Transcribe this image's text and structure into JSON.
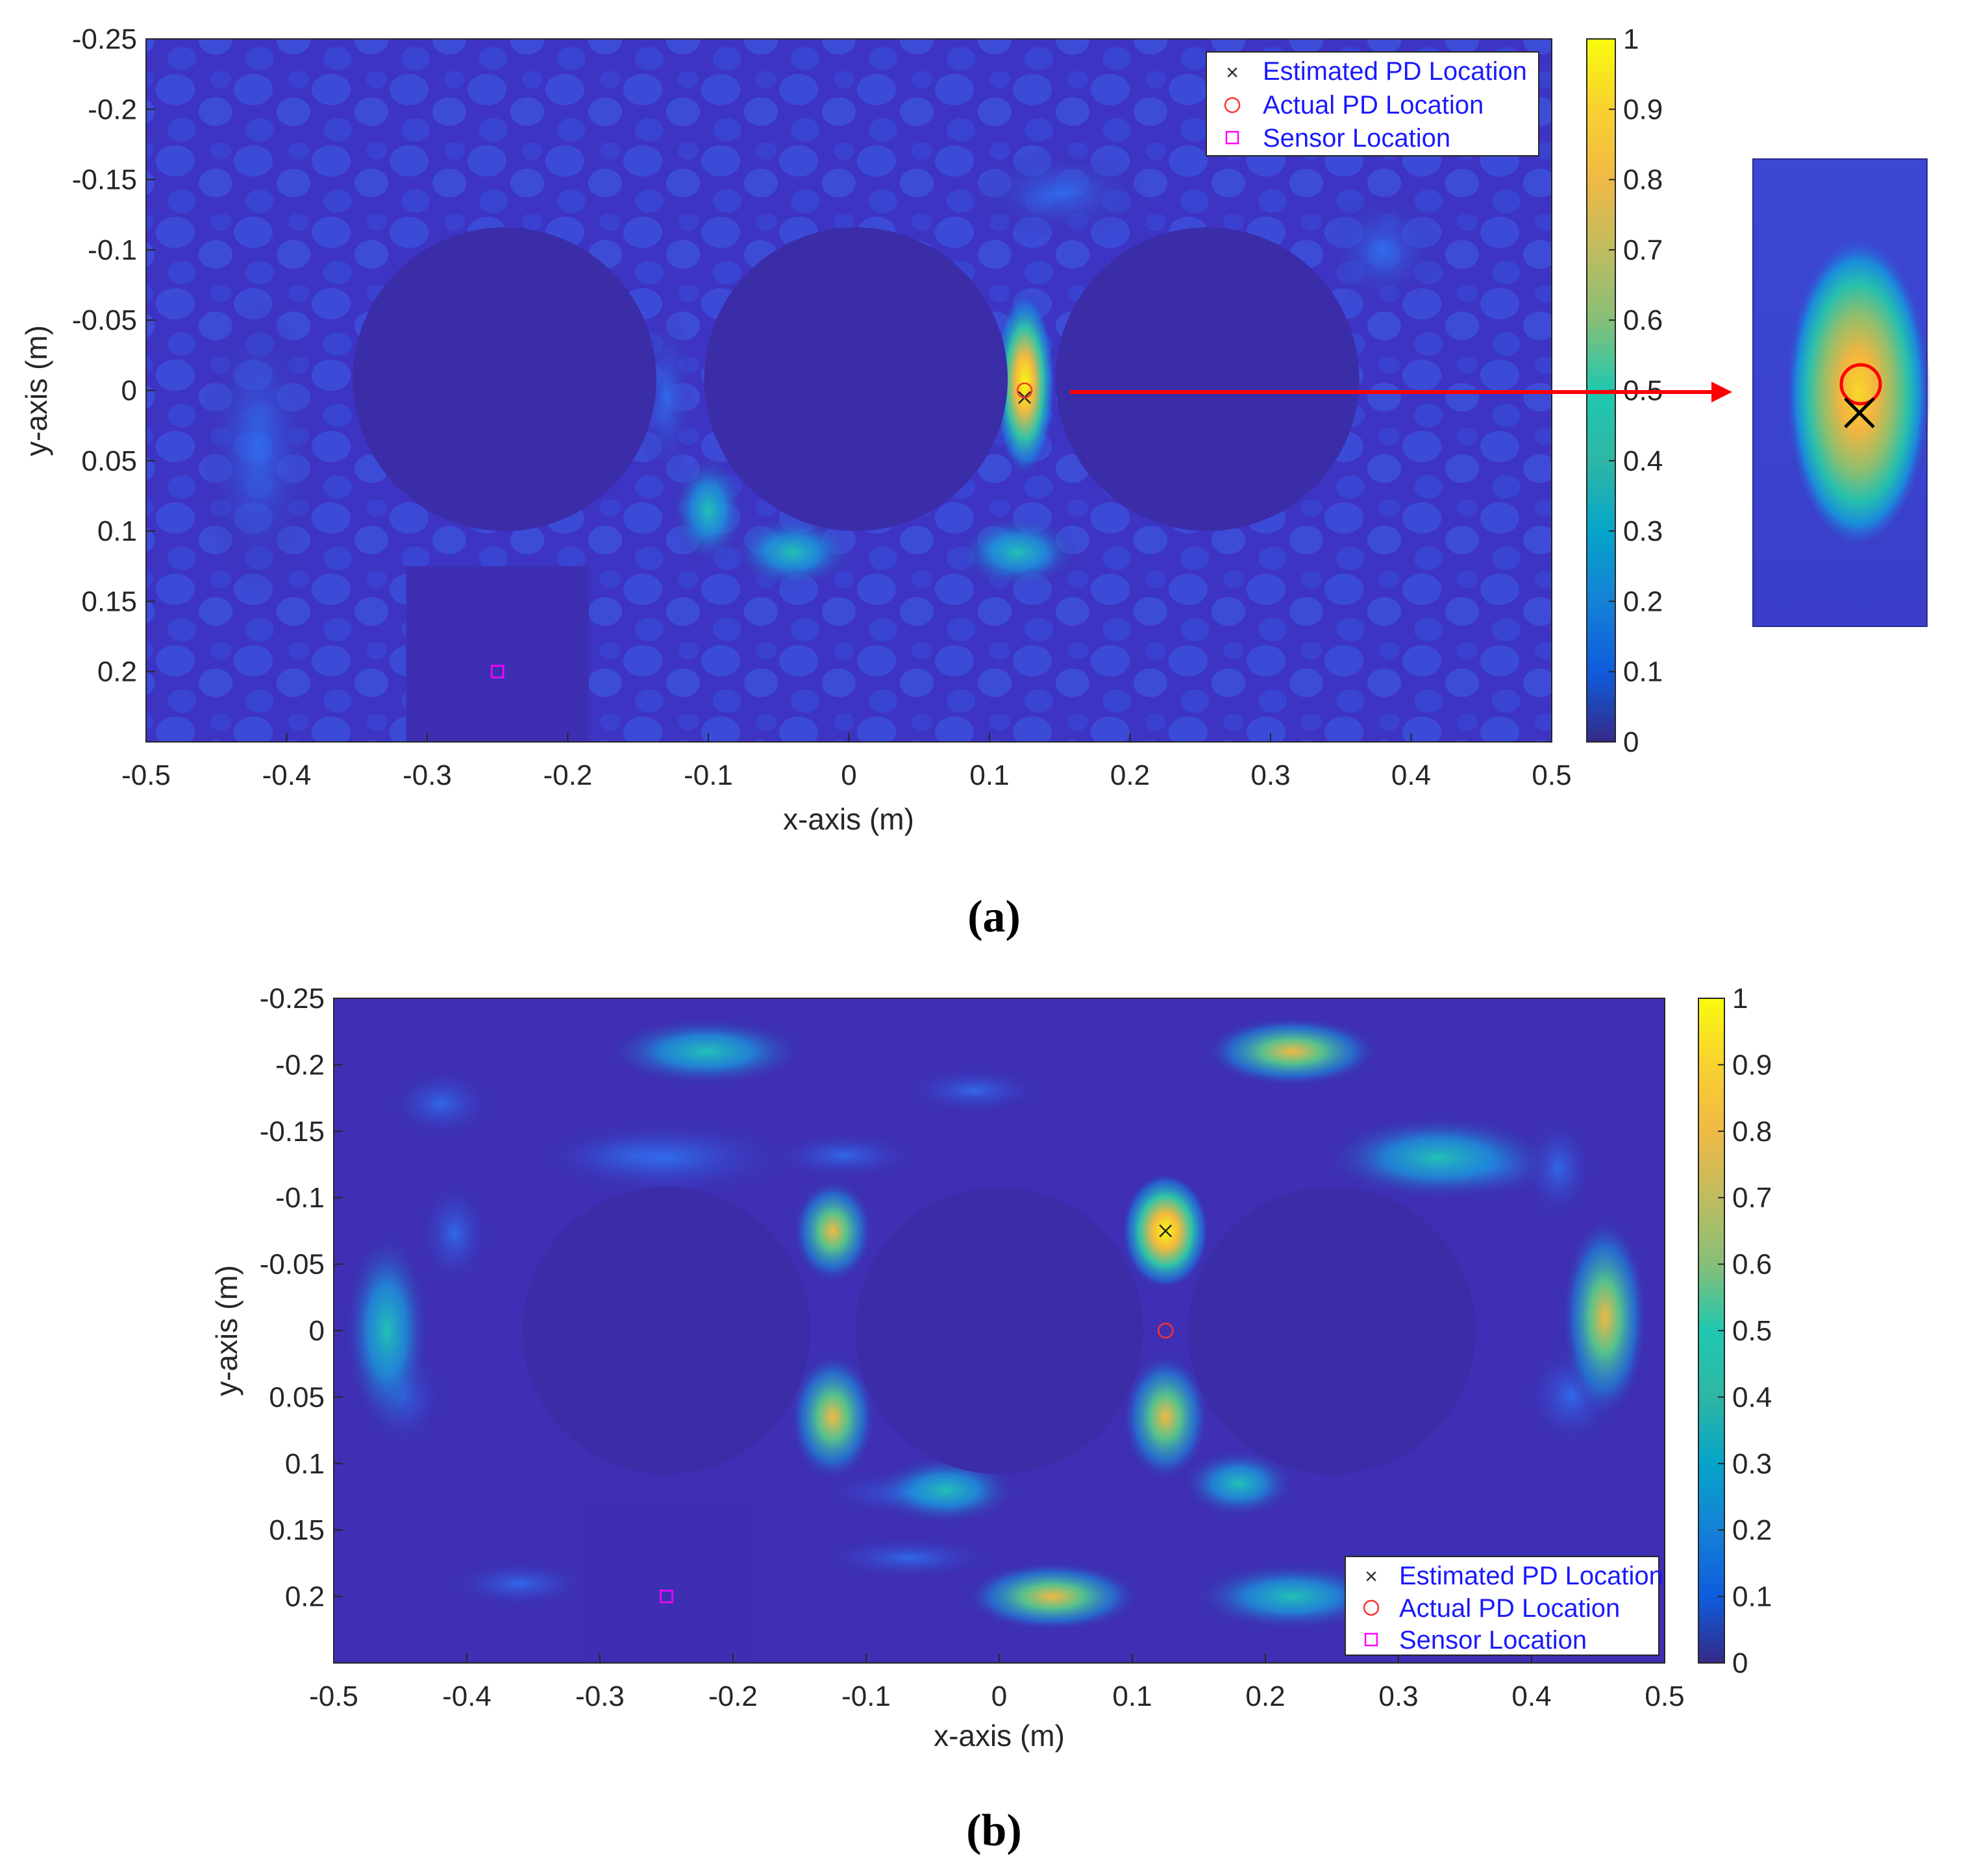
{
  "figure": {
    "panel_labels": [
      "(a)",
      "(b)"
    ]
  },
  "colors": {
    "background": "#3e26a8",
    "bright_high": "#f9fb0e",
    "bright_mid": "#1fc8b0",
    "estimated_marker": "#000000",
    "actual_marker": "#ff0000",
    "sensor_marker": "#ff00ff",
    "arrow": "#ff0000",
    "legend_text": "#1a1aff"
  },
  "chart_data": [
    {
      "type": "heatmap",
      "panel": "(a)",
      "title": "",
      "xlabel": "x-axis (m)",
      "ylabel": "y-axis (m)",
      "xlim": [
        -0.5,
        0.5
      ],
      "ylim": [
        -0.25,
        0.25
      ],
      "y_reversed": true,
      "xticks": [
        "-0.5",
        "-0.4",
        "-0.3",
        "-0.2",
        "-0.1",
        "0",
        "0.1",
        "0.2",
        "0.3",
        "0.4",
        "0.5"
      ],
      "xtick_values": [
        -0.5,
        -0.4,
        -0.3,
        -0.2,
        -0.1,
        0,
        0.1,
        0.2,
        0.3,
        0.4,
        0.5
      ],
      "yticks": [
        "-0.25",
        "-0.2",
        "-0.15",
        "-0.1",
        "-0.05",
        "0",
        "0.05",
        "0.1",
        "0.15",
        "0.2"
      ],
      "ytick_values": [
        -0.25,
        -0.2,
        -0.15,
        -0.1,
        -0.05,
        0,
        0.05,
        0.1,
        0.15,
        0.2
      ],
      "colorbar": {
        "range": [
          0,
          1
        ],
        "ticks": [
          "0",
          "0.1",
          "0.2",
          "0.3",
          "0.4",
          "0.5",
          "0.6",
          "0.7",
          "0.8",
          "0.9",
          "1"
        ]
      },
      "legend": {
        "position": "top-right",
        "entries": [
          {
            "marker": "x",
            "label": "Estimated PD Location"
          },
          {
            "marker": "o",
            "label": "Actual PD Location"
          },
          {
            "marker": "square",
            "label": "Sensor Location"
          }
        ]
      },
      "obstacles": [
        {
          "cx": -0.245,
          "cy": -0.008,
          "r": 0.108
        },
        {
          "cx": 0.005,
          "cy": -0.008,
          "r": 0.108
        },
        {
          "cx": 0.255,
          "cy": -0.008,
          "r": 0.108
        }
      ],
      "sensor_block": {
        "x0": -0.315,
        "x1": -0.185,
        "y0": 0.125,
        "y1": 0.25
      },
      "hotspots": [
        {
          "x": 0.125,
          "y": -0.005,
          "sx": 0.01,
          "sy": 0.03,
          "value": 0.95
        },
        {
          "x": -0.04,
          "y": 0.115,
          "sx": 0.02,
          "sy": 0.012,
          "value": 0.42
        },
        {
          "x": 0.12,
          "y": 0.115,
          "sx": 0.02,
          "sy": 0.012,
          "value": 0.4
        },
        {
          "x": -0.1,
          "y": 0.085,
          "sx": 0.012,
          "sy": 0.018,
          "value": 0.38
        },
        {
          "x": -0.13,
          "y": 0.005,
          "sx": 0.01,
          "sy": 0.03,
          "value": 0.32
        },
        {
          "x": 0.38,
          "y": -0.1,
          "sx": 0.02,
          "sy": 0.02,
          "value": 0.3
        },
        {
          "x": -0.42,
          "y": 0.04,
          "sx": 0.02,
          "sy": 0.05,
          "value": 0.3
        },
        {
          "x": 0.15,
          "y": -0.14,
          "sx": 0.03,
          "sy": 0.015,
          "value": 0.3
        }
      ],
      "markers": {
        "estimated": {
          "x": 0.125,
          "y": 0.005
        },
        "actual": {
          "x": 0.125,
          "y": 0.0
        },
        "sensor": {
          "x": -0.25,
          "y": 0.2
        }
      },
      "inset": {
        "description_marker_offset": "estimated slightly below actual"
      }
    },
    {
      "type": "heatmap",
      "panel": "(b)",
      "title": "",
      "xlabel": "x-axis (m)",
      "ylabel": "y-axis (m)",
      "xlim": [
        -0.5,
        0.5
      ],
      "ylim": [
        -0.25,
        0.25
      ],
      "y_reversed": true,
      "xticks": [
        "-0.5",
        "-0.4",
        "-0.3",
        "-0.2",
        "-0.1",
        "0",
        "0.1",
        "0.2",
        "0.3",
        "0.4",
        "0.5"
      ],
      "xtick_values": [
        -0.5,
        -0.4,
        -0.3,
        -0.2,
        -0.1,
        0,
        0.1,
        0.2,
        0.3,
        0.4,
        0.5
      ],
      "yticks": [
        "-0.25",
        "-0.2",
        "-0.15",
        "-0.1",
        "-0.05",
        "0",
        "0.05",
        "0.1",
        "0.15",
        "0.2"
      ],
      "ytick_values": [
        -0.25,
        -0.2,
        -0.15,
        -0.1,
        -0.05,
        0,
        0.05,
        0.1,
        0.15,
        0.2
      ],
      "colorbar": {
        "range": [
          0,
          1
        ],
        "ticks": [
          "0",
          "0.1",
          "0.2",
          "0.3",
          "0.4",
          "0.5",
          "0.6",
          "0.7",
          "0.8",
          "0.9",
          "1"
        ]
      },
      "legend": {
        "position": "bottom-right",
        "entries": [
          {
            "marker": "x",
            "label": "Estimated PD Location"
          },
          {
            "marker": "o",
            "label": "Actual PD Location"
          },
          {
            "marker": "square",
            "label": "Sensor Location"
          }
        ]
      },
      "obstacles": [
        {
          "cx": -0.25,
          "cy": 0.0,
          "r": 0.108
        },
        {
          "cx": 0.0,
          "cy": 0.0,
          "r": 0.108
        },
        {
          "cx": 0.25,
          "cy": 0.0,
          "r": 0.108
        }
      ],
      "sensor_block": {
        "x0": -0.313,
        "x1": -0.187,
        "y0": 0.127,
        "y1": 0.25
      },
      "hotspots": [
        {
          "x": 0.125,
          "y": -0.075,
          "sx": 0.015,
          "sy": 0.02,
          "value": 0.95
        },
        {
          "x": 0.125,
          "y": 0.065,
          "sx": 0.015,
          "sy": 0.022,
          "value": 0.8
        },
        {
          "x": -0.125,
          "y": 0.065,
          "sx": 0.015,
          "sy": 0.022,
          "value": 0.78
        },
        {
          "x": -0.125,
          "y": -0.075,
          "sx": 0.014,
          "sy": 0.018,
          "value": 0.6
        },
        {
          "x": 0.22,
          "y": -0.21,
          "sx": 0.03,
          "sy": 0.012,
          "value": 0.82
        },
        {
          "x": -0.22,
          "y": -0.21,
          "sx": 0.035,
          "sy": 0.012,
          "value": 0.5
        },
        {
          "x": 0.455,
          "y": -0.01,
          "sx": 0.015,
          "sy": 0.035,
          "value": 0.7
        },
        {
          "x": -0.46,
          "y": 0.0,
          "sx": 0.015,
          "sy": 0.035,
          "value": 0.5
        },
        {
          "x": 0.04,
          "y": 0.2,
          "sx": 0.03,
          "sy": 0.012,
          "value": 0.55
        },
        {
          "x": 0.22,
          "y": 0.2,
          "sx": 0.035,
          "sy": 0.012,
          "value": 0.45
        },
        {
          "x": -0.04,
          "y": 0.12,
          "sx": 0.025,
          "sy": 0.012,
          "value": 0.45
        },
        {
          "x": 0.18,
          "y": 0.115,
          "sx": 0.02,
          "sy": 0.012,
          "value": 0.45
        },
        {
          "x": 0.33,
          "y": -0.13,
          "sx": 0.04,
          "sy": 0.015,
          "value": 0.4
        },
        {
          "x": -0.25,
          "y": -0.13,
          "sx": 0.05,
          "sy": 0.015,
          "value": 0.3
        }
      ],
      "markers": {
        "estimated": {
          "x": 0.125,
          "y": -0.075
        },
        "actual": {
          "x": 0.125,
          "y": 0.0
        },
        "sensor": {
          "x": -0.25,
          "y": 0.2
        }
      }
    }
  ]
}
